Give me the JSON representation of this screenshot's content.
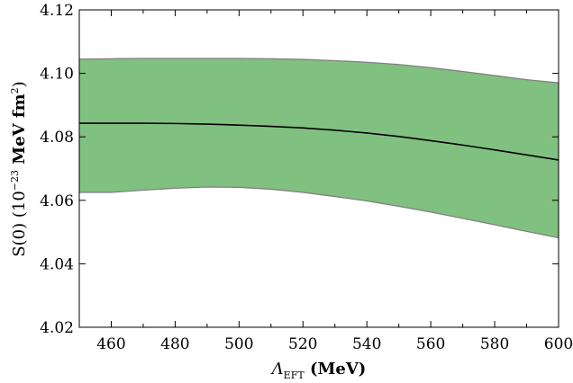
{
  "chart_data": {
    "type": "area",
    "x_ticks": [
      "460",
      "480",
      "500",
      "520",
      "540",
      "560",
      "580",
      "600"
    ],
    "y_ticks": [
      "4.02",
      "4.04",
      "4.06",
      "4.08",
      "4.10",
      "4.12"
    ],
    "xlim": [
      450,
      600
    ],
    "ylim": [
      4.02,
      4.12
    ],
    "xlabel": {
      "symbol": "Λ",
      "subscript": "EFT",
      "unit": " (MeV)"
    },
    "ylabel": {
      "prefix": "S(0) (10",
      "exponent": "−23",
      "units": " MeV fm",
      "units_exponent": "2",
      "suffix": ")"
    },
    "grid": false,
    "colors": {
      "band_fill": "#80c080",
      "band_edge": "#808080",
      "central_line": "#000000"
    },
    "series": [
      {
        "role": "central",
        "x": [
          450,
          460,
          470,
          480,
          490,
          500,
          510,
          520,
          530,
          540,
          550,
          560,
          570,
          580,
          590,
          600
        ],
        "y": [
          4.0843,
          4.0843,
          4.0843,
          4.0842,
          4.084,
          4.0837,
          4.0833,
          4.0828,
          4.0821,
          4.0812,
          4.0801,
          4.0788,
          4.0774,
          4.0759,
          4.0743,
          4.0727
        ]
      },
      {
        "role": "band-upper",
        "x": [
          450,
          460,
          470,
          480,
          490,
          500,
          510,
          520,
          530,
          540,
          550,
          560,
          570,
          580,
          590,
          600
        ],
        "y": [
          4.1045,
          4.1046,
          4.1047,
          4.1047,
          4.1047,
          4.1047,
          4.1046,
          4.1044,
          4.104,
          4.1035,
          4.1028,
          4.1018,
          4.1006,
          4.0993,
          4.098,
          4.097
        ]
      },
      {
        "role": "band-lower",
        "x": [
          450,
          460,
          470,
          480,
          490,
          500,
          510,
          520,
          530,
          540,
          550,
          560,
          570,
          580,
          590,
          600
        ],
        "y": [
          4.0625,
          4.0625,
          4.0632,
          4.0638,
          4.0642,
          4.0641,
          4.0635,
          4.0625,
          4.0612,
          4.0598,
          4.0581,
          4.0563,
          4.0543,
          4.0523,
          4.0502,
          4.0482
        ]
      }
    ]
  }
}
